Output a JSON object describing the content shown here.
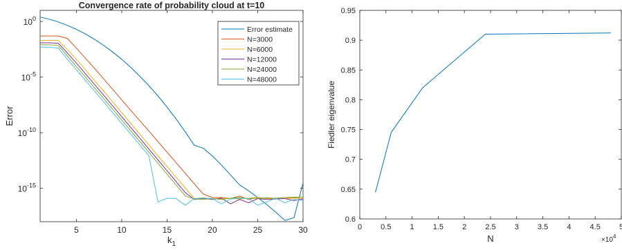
{
  "chart_data": [
    {
      "type": "line",
      "title": "Convergence rate of probability cloud at t=10",
      "xlabel": "k",
      "xlabel_subscript": "1",
      "ylabel": "Error",
      "yscale": "log",
      "xlim": [
        1,
        30
      ],
      "ylim": [
        1e-18,
        10
      ],
      "xticks": [
        5,
        10,
        15,
        20,
        25,
        30
      ],
      "yticks": [
        {
          "value": 1,
          "base": "10",
          "exp": "0"
        },
        {
          "value": 1e-05,
          "base": "10",
          "exp": "-5"
        },
        {
          "value": 1e-10,
          "base": "10",
          "exp": "-10"
        },
        {
          "value": 1e-15,
          "base": "10",
          "exp": "-15"
        }
      ],
      "grid": false,
      "legend_position": "top-right",
      "series": [
        {
          "name": "Error estimate",
          "color": "#0072BD",
          "x": [
            1,
            2,
            3,
            4,
            5,
            6,
            7,
            8,
            9,
            10,
            11,
            12,
            13,
            14,
            15,
            16,
            17,
            18,
            19,
            20,
            21,
            22,
            23,
            24,
            25,
            26,
            27,
            28,
            29,
            30
          ],
          "y": [
            2.5,
            1.6,
            0.9,
            0.45,
            0.2,
            0.075,
            0.025,
            0.0072,
            0.0018,
            0.0004,
            7.5e-05,
            1.2e-05,
            1.7e-06,
            2e-07,
            2e-08,
            1.7e-09,
            1.2e-10,
            7.5e-12,
            4e-12,
            8e-13,
            1.2e-13,
            1.6e-14,
            2e-15,
            6e-16,
            1.5e-16,
            3.5e-17,
            7e-18,
            1.3e-18,
            2.3e-18,
            3e-15
          ]
        },
        {
          "name": "N=3000",
          "color": "#D95319",
          "x": [
            1,
            2,
            3,
            4,
            5,
            6,
            7,
            8,
            9,
            10,
            11,
            12,
            13,
            14,
            15,
            16,
            17,
            18,
            19,
            20,
            21,
            22,
            23,
            24,
            25,
            26,
            27,
            28,
            29,
            30
          ],
          "y": [
            0.05,
            0.05,
            0.05,
            0.03,
            0.004,
            0.0005,
            6e-05,
            7e-06,
            8e-07,
            9e-08,
            1e-08,
            1.2e-09,
            1.4e-10,
            1.6e-11,
            1.8e-12,
            2e-13,
            2.3e-14,
            2.6e-15,
            3e-16,
            1.5e-16,
            1.5e-16,
            1.2e-16,
            2e-16,
            1e-16,
            1.5e-16,
            1.2e-16,
            1.3e-16,
            1.2e-16,
            1.5e-16,
            1.2e-16
          ]
        },
        {
          "name": "N=6000",
          "color": "#EDB120",
          "x": [
            1,
            2,
            3,
            4,
            5,
            6,
            7,
            8,
            9,
            10,
            11,
            12,
            13,
            14,
            15,
            16,
            17,
            18,
            19,
            20,
            21,
            22,
            23,
            24,
            25,
            26,
            27,
            28,
            29,
            30
          ],
          "y": [
            0.02,
            0.02,
            0.02,
            0.003,
            0.0004,
            4.5e-05,
            5e-06,
            5.5e-07,
            6e-08,
            6.5e-09,
            7e-10,
            7.5e-11,
            8e-12,
            8.5e-13,
            9e-14,
            1e-14,
            1.1e-15,
            1.2e-16,
            1.4e-16,
            1.1e-16,
            1.3e-16,
            1.2e-16,
            1.1e-16,
            1.3e-16,
            1.5e-16,
            1.2e-16,
            1.3e-16,
            1.2e-16,
            1.3e-16,
            1.3e-16
          ]
        },
        {
          "name": "N=12000",
          "color": "#7E2F8E",
          "x": [
            1,
            2,
            3,
            4,
            5,
            6,
            7,
            8,
            9,
            10,
            11,
            12,
            13,
            14,
            15,
            16,
            17,
            18,
            19,
            20,
            21,
            22,
            23,
            24,
            25,
            26,
            27,
            28,
            29,
            30
          ],
          "y": [
            0.012,
            0.012,
            0.011,
            0.0015,
            0.00018,
            2e-05,
            2.2e-06,
            2.4e-07,
            2.6e-08,
            2.8e-09,
            3e-10,
            3.2e-11,
            3.4e-12,
            3.6e-13,
            3.8e-14,
            4e-15,
            4.2e-16,
            1e-16,
            1.2e-16,
            1e-16,
            1.3e-16,
            4e-17,
            1e-16,
            5e-17,
            1.2e-16,
            1e-16,
            1.1e-16,
            1.2e-16,
            8e-17,
            1.1e-16
          ]
        },
        {
          "name": "N=24000",
          "color": "#77AC30",
          "x": [
            1,
            2,
            3,
            4,
            5,
            6,
            7,
            8,
            9,
            10,
            11,
            12,
            13,
            14,
            15,
            16,
            17,
            18,
            19,
            20,
            21,
            22,
            23,
            24,
            25,
            26,
            27,
            28,
            29,
            30
          ],
          "y": [
            0.008,
            0.008,
            0.007,
            0.0008,
            9e-05,
            1e-05,
            1.1e-06,
            1.2e-07,
            1.3e-08,
            1.4e-09,
            1.5e-10,
            1.6e-11,
            1.7e-12,
            1.8e-13,
            1.9e-14,
            2e-15,
            2.1e-16,
            1.1e-16,
            1e-16,
            1.2e-16,
            1e-16,
            1.3e-16,
            1.5e-16,
            1.2e-16,
            1.3e-16,
            1.4e-16,
            1.3e-16,
            1.5e-16,
            1.6e-16,
            1.7e-16
          ]
        },
        {
          "name": "N=48000",
          "color": "#4DBEEE",
          "x": [
            1,
            2,
            3,
            4,
            5,
            6,
            7,
            8,
            9,
            10,
            11,
            12,
            13,
            14,
            15,
            16,
            17,
            18,
            19,
            20,
            21,
            22,
            23,
            24,
            25,
            26,
            27,
            28,
            29,
            30
          ],
          "y": [
            0.005,
            0.005,
            0.004,
            0.0004,
            4.5e-05,
            5e-06,
            5.5e-07,
            6e-08,
            6.5e-09,
            7e-10,
            7.5e-11,
            8e-12,
            8.5e-13,
            6e-17,
            1.3e-16,
            1.2e-16,
            3e-17,
            1.2e-16,
            1.3e-16,
            1.2e-16,
            4e-17,
            1.1e-16,
            1.3e-16,
            1.2e-16,
            3e-17,
            6e-17,
            1.3e-16,
            5e-17,
            1e-16,
            8e-17
          ]
        }
      ]
    },
    {
      "type": "line",
      "title": "",
      "xlabel": "N",
      "ylabel": "Fiedler eigenvalue",
      "xlim": [
        0,
        50000
      ],
      "ylim": [
        0.6,
        0.95
      ],
      "xticks": [
        {
          "value": 0,
          "label": "0"
        },
        {
          "value": 5000,
          "label": "0.5"
        },
        {
          "value": 10000,
          "label": "1"
        },
        {
          "value": 15000,
          "label": "1.5"
        },
        {
          "value": 20000,
          "label": "2"
        },
        {
          "value": 25000,
          "label": "2.5"
        },
        {
          "value": 30000,
          "label": "3"
        },
        {
          "value": 35000,
          "label": "3.5"
        },
        {
          "value": 40000,
          "label": "4"
        },
        {
          "value": 45000,
          "label": "4.5"
        },
        {
          "value": 50000,
          "label": "5"
        }
      ],
      "x_exponent": {
        "base": "×10",
        "exp": "4"
      },
      "yticks": [
        0.6,
        0.65,
        0.7,
        0.75,
        0.8,
        0.85,
        0.9,
        0.95
      ],
      "ytick_labels": [
        "0.6",
        "0.65",
        "0.7",
        "0.75",
        "0.8",
        "0.85",
        "0.9",
        "0.95"
      ],
      "grid": false,
      "series": [
        {
          "color": "#0072BD",
          "x": [
            3000,
            6000,
            12000,
            24000,
            48000
          ],
          "y": [
            0.645,
            0.745,
            0.82,
            0.91,
            0.912
          ]
        }
      ]
    }
  ]
}
